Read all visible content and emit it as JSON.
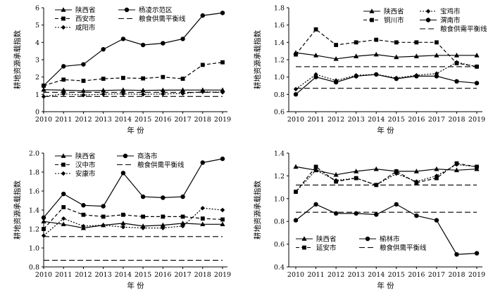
{
  "chart_data": [
    {
      "type": "line",
      "ylabel": "耕地资源承载指数",
      "xlabel": "年 份",
      "ylim": [
        0,
        6
      ],
      "yticks": [
        "0",
        "1",
        "2",
        "3",
        "4",
        "5",
        "6"
      ],
      "x": [
        2010,
        2011,
        2012,
        2013,
        2014,
        2015,
        2016,
        2017,
        2018,
        2019
      ],
      "legend_position": "top-left",
      "legend_columns": 2,
      "series": [
        {
          "name": "陕西省",
          "marker": "triangle",
          "line": "solid",
          "values": [
            1.27,
            1.24,
            1.2,
            1.23,
            1.25,
            1.23,
            1.24,
            1.25,
            1.25,
            1.25
          ]
        },
        {
          "name": "西安市",
          "marker": "square",
          "line": "dashed",
          "values": [
            1.5,
            1.85,
            1.78,
            1.9,
            1.95,
            1.92,
            2.0,
            1.9,
            2.7,
            2.85
          ]
        },
        {
          "name": "咸阳市",
          "marker": "diamond",
          "line": "dotted",
          "values": [
            0.87,
            1.03,
            0.96,
            1.01,
            1.03,
            1.0,
            1.02,
            1.05,
            1.15,
            1.12
          ]
        },
        {
          "name": "杨凌示范区",
          "marker": "circle",
          "line": "solid",
          "values": [
            1.5,
            2.62,
            2.73,
            3.6,
            4.2,
            3.85,
            3.95,
            4.2,
            5.55,
            5.7
          ]
        },
        {
          "name": "粮食供需平衡线",
          "marker": "none",
          "line": "longdash",
          "values": [
            1.12,
            1.12,
            1.12,
            1.12,
            1.12,
            1.12,
            1.12,
            1.12,
            1.12,
            1.12
          ]
        },
        {
          "name": "",
          "marker": "none",
          "line": "longdash",
          "values": [
            0.88,
            0.88,
            0.88,
            0.88,
            0.88,
            0.88,
            0.88,
            0.88,
            0.88,
            0.88
          ]
        }
      ]
    },
    {
      "type": "line",
      "ylabel": "耕地资源承载指数",
      "xlabel": "年 份",
      "ylim": [
        0.6,
        1.8
      ],
      "yticks": [
        "0.6",
        "0.8",
        "1.0",
        "1.2",
        "1.4",
        "1.6",
        "1.8"
      ],
      "x": [
        2010,
        2011,
        2012,
        2013,
        2014,
        2015,
        2016,
        2017,
        2018,
        2019
      ],
      "legend_position": "top-right",
      "legend_columns": 2,
      "series": [
        {
          "name": "陕西省",
          "marker": "triangle",
          "line": "solid",
          "values": [
            1.28,
            1.25,
            1.21,
            1.24,
            1.26,
            1.23,
            1.24,
            1.25,
            1.25,
            1.25
          ]
        },
        {
          "name": "铜川市",
          "marker": "square",
          "line": "dashed",
          "values": [
            1.26,
            1.55,
            1.37,
            1.4,
            1.43,
            1.4,
            1.4,
            1.4,
            1.16,
            1.12
          ]
        },
        {
          "name": "宝鸡市",
          "marker": "diamond",
          "line": "dotted",
          "values": [
            0.86,
            1.03,
            0.96,
            1.02,
            1.03,
            0.99,
            1.02,
            1.04,
            1.17,
            1.12
          ]
        },
        {
          "name": "渭南市",
          "marker": "circle",
          "line": "solid",
          "values": [
            0.8,
            1.0,
            0.94,
            1.01,
            1.03,
            0.98,
            1.01,
            1.01,
            0.95,
            0.93
          ]
        },
        {
          "name": "粮食供需平衡线",
          "marker": "none",
          "line": "longdash",
          "values": [
            1.12,
            1.12,
            1.12,
            1.12,
            1.12,
            1.12,
            1.12,
            1.12,
            1.12,
            1.12
          ]
        },
        {
          "name": "",
          "marker": "none",
          "line": "longdash",
          "values": [
            0.87,
            0.87,
            0.87,
            0.87,
            0.87,
            0.87,
            0.87,
            0.87,
            0.87,
            0.87
          ]
        }
      ]
    },
    {
      "type": "line",
      "ylabel": "耕地资源承载指数",
      "xlabel": "年 份",
      "ylim": [
        0.8,
        2.0
      ],
      "yticks": [
        "0.8",
        "1.0",
        "1.2",
        "1.4",
        "1.6",
        "1.8",
        "2.0"
      ],
      "x": [
        2010,
        2011,
        2012,
        2013,
        2014,
        2015,
        2016,
        2017,
        2018,
        2019
      ],
      "legend_position": "top-left",
      "legend_columns": 2,
      "series": [
        {
          "name": "陕西省",
          "marker": "triangle",
          "line": "solid",
          "values": [
            1.28,
            1.25,
            1.21,
            1.24,
            1.26,
            1.23,
            1.24,
            1.26,
            1.25,
            1.25
          ]
        },
        {
          "name": "汉中市",
          "marker": "square",
          "line": "dashed",
          "values": [
            1.2,
            1.43,
            1.35,
            1.33,
            1.35,
            1.33,
            1.33,
            1.33,
            1.31,
            1.3
          ]
        },
        {
          "name": "安康市",
          "marker": "diamond",
          "line": "dotted",
          "values": [
            1.13,
            1.31,
            1.23,
            1.24,
            1.22,
            1.21,
            1.21,
            1.23,
            1.42,
            1.4
          ]
        },
        {
          "name": "商洛市",
          "marker": "circle",
          "line": "solid",
          "values": [
            1.32,
            1.57,
            1.45,
            1.44,
            1.79,
            1.54,
            1.53,
            1.54,
            1.9,
            1.94
          ]
        },
        {
          "name": "粮食供需平衡线",
          "marker": "none",
          "line": "longdash",
          "values": [
            1.12,
            1.12,
            1.12,
            1.12,
            1.12,
            1.12,
            1.12,
            1.12,
            1.12,
            1.12
          ]
        },
        {
          "name": "",
          "marker": "none",
          "line": "longdash",
          "values": [
            0.87,
            0.87,
            0.87,
            0.87,
            0.87,
            0.87,
            0.87,
            0.87,
            0.87,
            0.87
          ]
        }
      ]
    },
    {
      "type": "line",
      "ylabel": "耕地资源承载指数",
      "xlabel": "年 份",
      "ylim": [
        0.4,
        1.4
      ],
      "yticks": [
        "0.4",
        "0.6",
        "0.8",
        "1.0",
        "1.2",
        "1.4"
      ],
      "x": [
        2010,
        2011,
        2012,
        2013,
        2014,
        2015,
        2016,
        2017,
        2018,
        2019
      ],
      "legend_position": "bottom-left",
      "legend_columns": 2,
      "series": [
        {
          "name": "陕西省",
          "marker": "triangle",
          "line": "solid",
          "values": [
            1.28,
            1.25,
            1.21,
            1.24,
            1.26,
            1.24,
            1.24,
            1.26,
            1.25,
            1.26
          ]
        },
        {
          "name": "延安市",
          "marker": "square",
          "line": "dashed",
          "values": [
            1.06,
            1.28,
            1.15,
            1.18,
            1.12,
            1.24,
            1.14,
            1.18,
            1.31,
            1.28
          ]
        },
        {
          "name": "",
          "marker": "diamond",
          "line": "dotted",
          "values": [
            1.06,
            1.25,
            1.16,
            1.18,
            1.12,
            1.22,
            1.15,
            1.2,
            1.3,
            1.28
          ]
        },
        {
          "name": "榆林市",
          "marker": "circle",
          "line": "solid",
          "values": [
            0.81,
            0.95,
            0.87,
            0.87,
            0.86,
            0.95,
            0.85,
            0.81,
            0.51,
            0.52
          ]
        },
        {
          "name": "粮食供需平衡线",
          "marker": "none",
          "line": "longdash",
          "values": [
            1.12,
            1.12,
            1.12,
            1.12,
            1.12,
            1.12,
            1.12,
            1.12,
            1.12,
            1.12
          ]
        },
        {
          "name": "",
          "marker": "none",
          "line": "longdash",
          "values": [
            0.88,
            0.88,
            0.88,
            0.88,
            0.88,
            0.88,
            0.88,
            0.88,
            0.88,
            0.88
          ]
        }
      ]
    }
  ]
}
